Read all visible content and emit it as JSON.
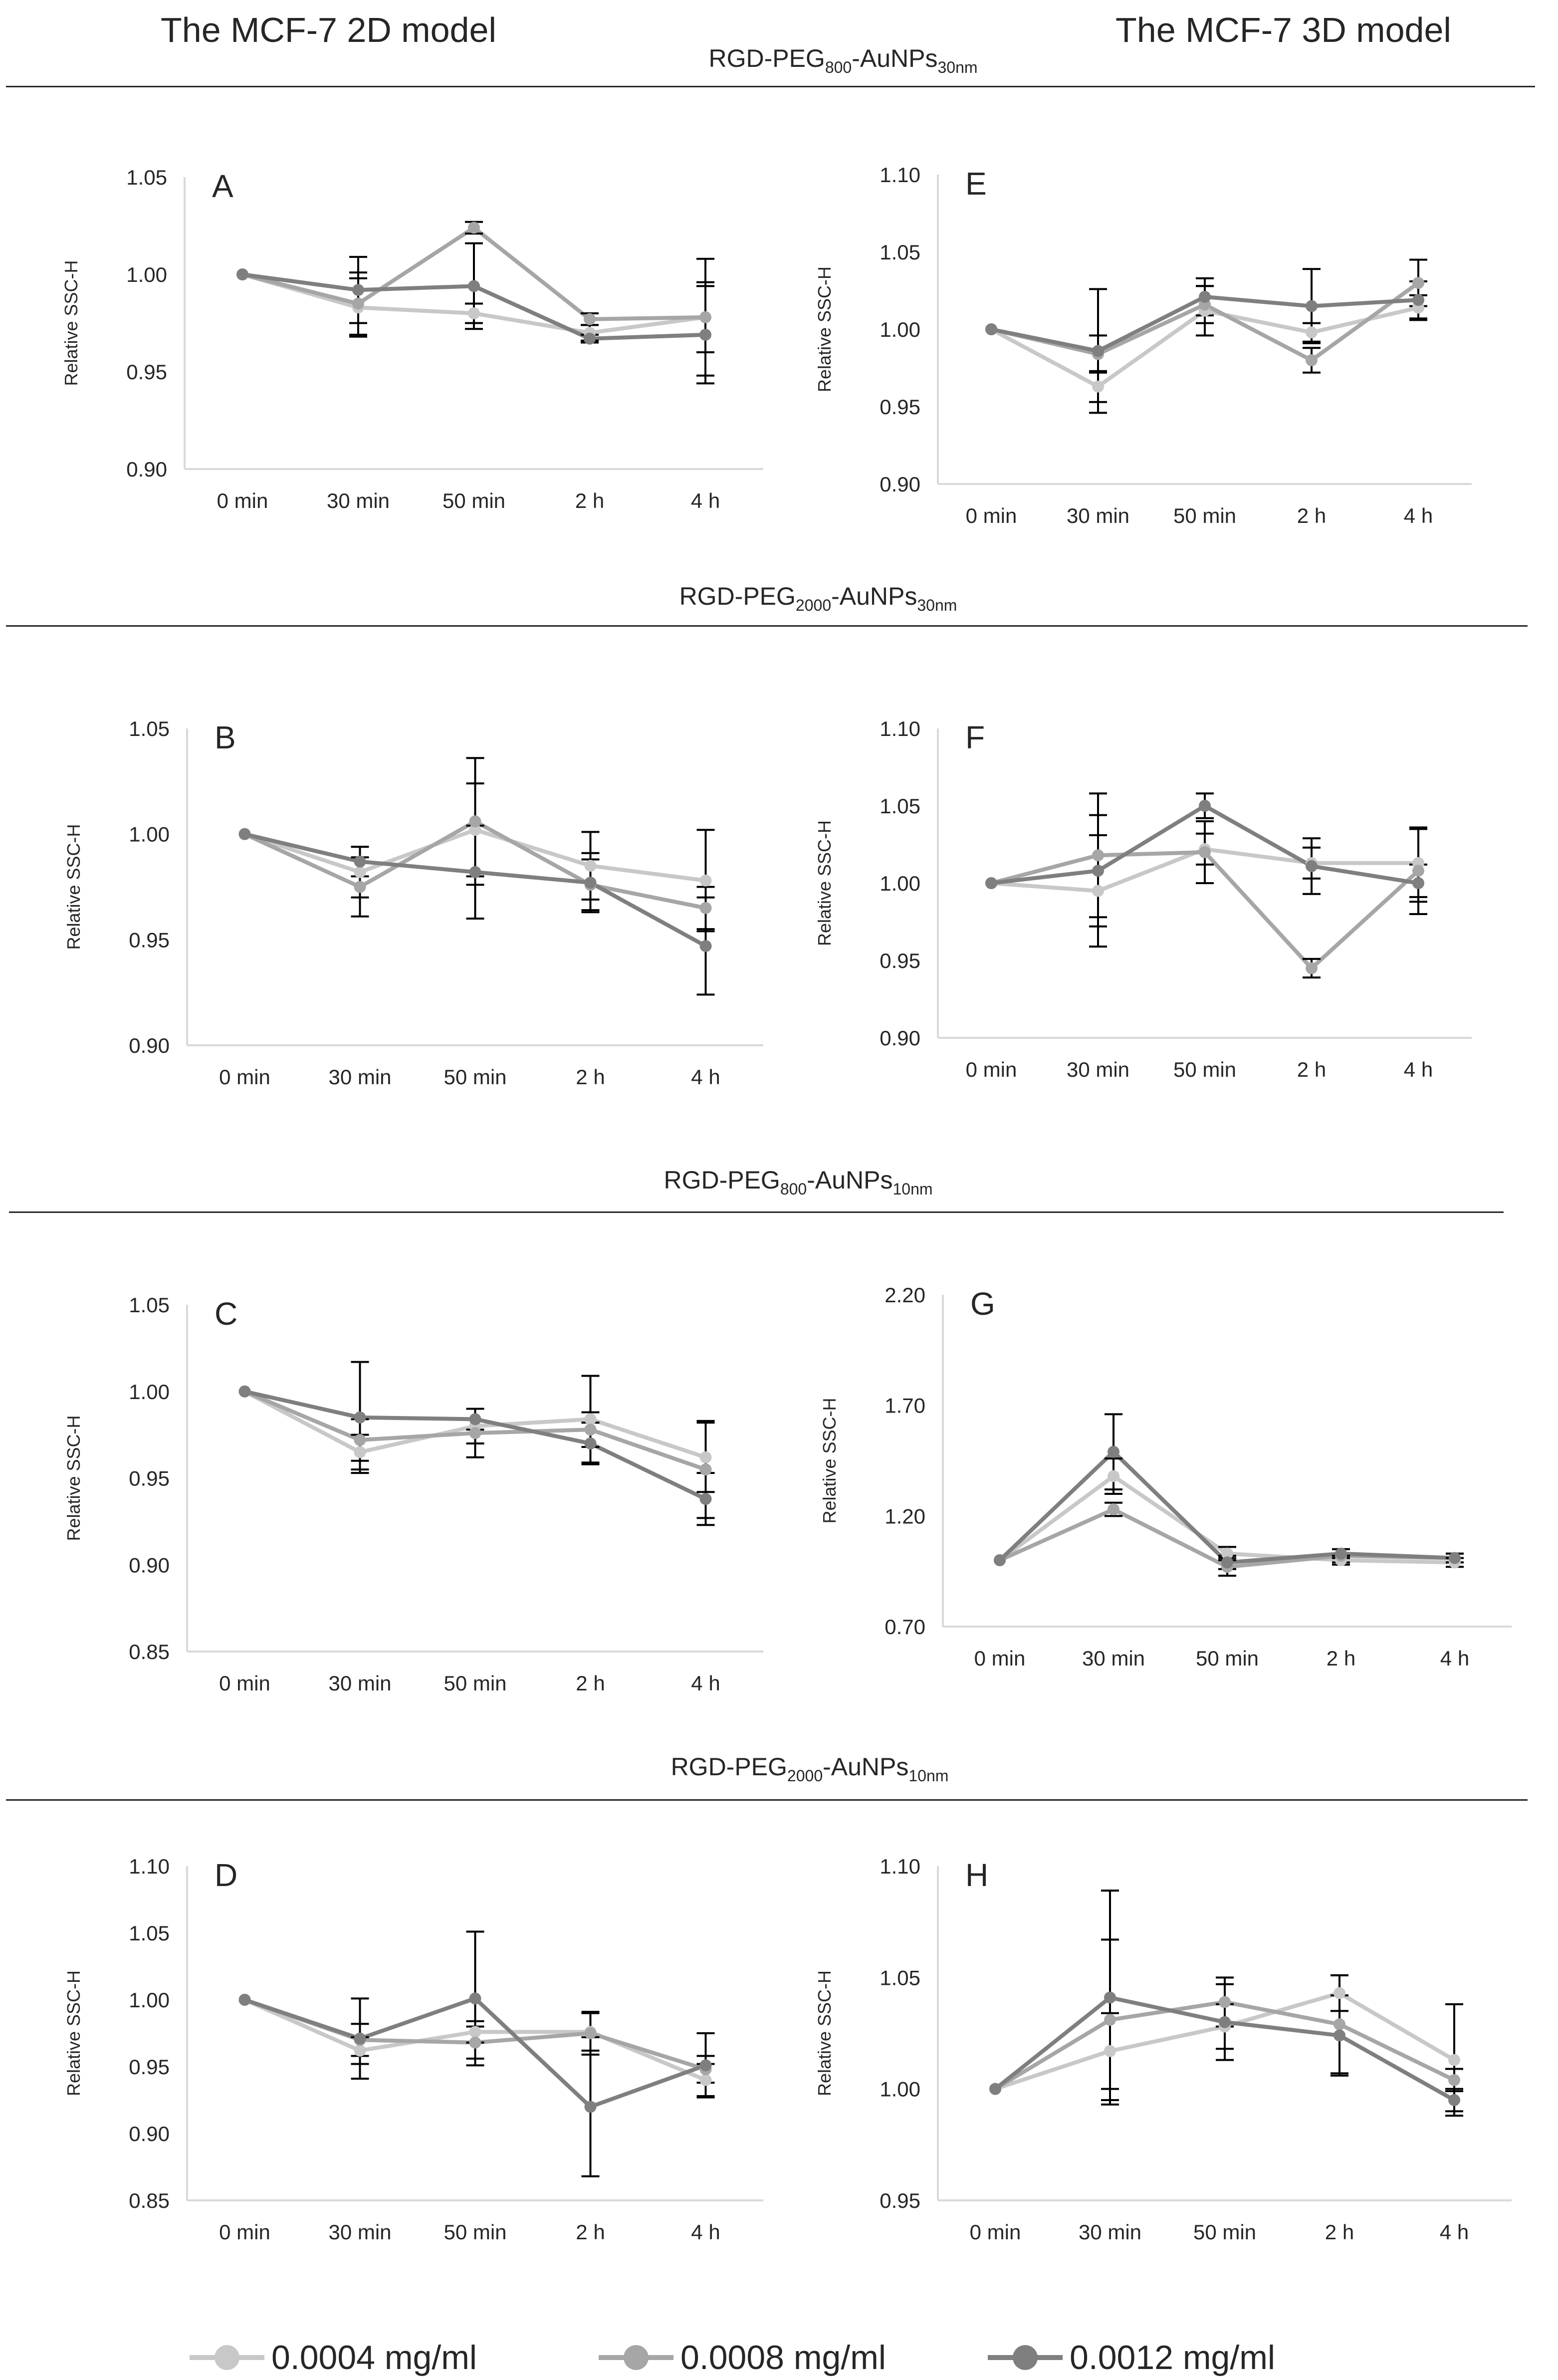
{
  "headers": {
    "left": "The MCF-7 2D model",
    "right": "The MCF-7 3D model"
  },
  "sections": [
    {
      "base": "RGD-PEG",
      "peg": "800",
      "mid": "-AuNPs",
      "size": "30nm"
    },
    {
      "base": "RGD-PEG",
      "peg": "2000",
      "mid": "-AuNPs",
      "size": "30nm"
    },
    {
      "base": "RGD-PEG",
      "peg": "800",
      "mid": "-AuNPs",
      "size": "10nm"
    },
    {
      "base": "RGD-PEG",
      "peg": "2000",
      "mid": "-AuNPs",
      "size": "10nm"
    }
  ],
  "colors": {
    "series": [
      "#c8c8c8",
      "#a6a6a6",
      "#7f7f7f"
    ],
    "axis": "#d9d9d9",
    "error": "#000000",
    "text": "#262626"
  },
  "legend": [
    {
      "label": "0.0004 mg/ml"
    },
    {
      "label": "0.0008 mg/ml"
    },
    {
      "label": "0.0012 mg/ml"
    }
  ],
  "chart_data": [
    {
      "id": "A",
      "type": "line",
      "panel_label": "A",
      "ylabel": "Relative SSC-H",
      "categories": [
        "0 min",
        "30 min",
        "50 min",
        "2 h",
        "4 h"
      ],
      "ylim": [
        0.9,
        1.05
      ],
      "yticks": [
        "0.90",
        "0.95",
        "1.00",
        "1.05"
      ],
      "series": [
        {
          "name": "0.0004 mg/ml",
          "values": [
            1.0,
            0.983,
            0.98,
            0.97,
            0.978
          ],
          "errors": [
            0,
            0.015,
            0.005,
            0.004,
            0.018
          ]
        },
        {
          "name": "0.0008 mg/ml",
          "values": [
            1.0,
            0.985,
            1.024,
            0.977,
            0.978
          ],
          "errors": [
            0,
            0.016,
            0.003,
            0.003,
            0.03
          ]
        },
        {
          "name": "0.0012 mg/ml",
          "values": [
            1.0,
            0.992,
            0.994,
            0.967,
            0.969
          ],
          "errors": [
            0,
            0.017,
            0.022,
            0.002,
            0.025
          ]
        }
      ]
    },
    {
      "id": "B",
      "type": "line",
      "panel_label": "B",
      "ylabel": "Relative SSC-H",
      "categories": [
        "0 min",
        "30 min",
        "50 min",
        "2 h",
        "4 h"
      ],
      "ylim": [
        0.9,
        1.05
      ],
      "yticks": [
        "0.90",
        "0.95",
        "1.00",
        "1.05"
      ],
      "series": [
        {
          "name": "0.0004 mg/ml",
          "values": [
            1.0,
            0.982,
            1.002,
            0.985,
            0.978
          ],
          "errors": [
            0,
            0.012,
            0.022,
            0.016,
            0.024
          ]
        },
        {
          "name": "0.0008 mg/ml",
          "values": [
            1.0,
            0.975,
            1.006,
            0.976,
            0.965
          ],
          "errors": [
            0,
            0.014,
            0.03,
            0.012,
            0.01
          ]
        },
        {
          "name": "0.0012 mg/ml",
          "values": [
            1.0,
            0.987,
            0.982,
            0.977,
            0.947
          ],
          "errors": [
            0,
            0.007,
            0.022,
            0.014,
            0.023
          ]
        }
      ]
    },
    {
      "id": "C",
      "type": "line",
      "panel_label": "C",
      "ylabel": "Relative SSC-H",
      "categories": [
        "0 min",
        "30 min",
        "50 min",
        "2 h",
        "4 h"
      ],
      "ylim": [
        0.85,
        1.05
      ],
      "yticks": [
        "0.85",
        "0.90",
        "0.95",
        "1.00",
        "1.05"
      ],
      "series": [
        {
          "name": "0.0004 mg/ml",
          "values": [
            1.0,
            0.965,
            0.98,
            0.984,
            0.962
          ],
          "errors": [
            0,
            0.01,
            0.01,
            0.025,
            0.02
          ]
        },
        {
          "name": "0.0008 mg/ml",
          "values": [
            1.0,
            0.972,
            0.976,
            0.978,
            0.955
          ],
          "errors": [
            0,
            0.012,
            0.014,
            0.01,
            0.028
          ]
        },
        {
          "name": "0.0012 mg/ml",
          "values": [
            1.0,
            0.985,
            0.984,
            0.97,
            0.938
          ],
          "errors": [
            0,
            0.032,
            0.006,
            0.012,
            0.015
          ]
        }
      ]
    },
    {
      "id": "D",
      "type": "line",
      "panel_label": "D",
      "ylabel": "Relative SSC-H",
      "categories": [
        "0 min",
        "30 min",
        "50 min",
        "2 h",
        "4 h"
      ],
      "ylim": [
        0.85,
        1.1
      ],
      "yticks": [
        "0.85",
        "0.90",
        "0.95",
        "1.00",
        "1.05",
        "1.10"
      ],
      "series": [
        {
          "name": "0.0004 mg/ml",
          "values": [
            1.0,
            0.962,
            0.976,
            0.976,
            0.94
          ],
          "errors": [
            0,
            0.01,
            0.008,
            0.014,
            0.012
          ]
        },
        {
          "name": "0.0008 mg/ml",
          "values": [
            1.0,
            0.97,
            0.968,
            0.975,
            0.948
          ],
          "errors": [
            0,
            0.012,
            0.012,
            0.016,
            0.01
          ]
        },
        {
          "name": "0.0012 mg/ml",
          "values": [
            1.0,
            0.971,
            1.001,
            0.92,
            0.951
          ],
          "errors": [
            0,
            0.03,
            0.05,
            0.052,
            0.024
          ]
        }
      ]
    },
    {
      "id": "E",
      "type": "line",
      "panel_label": "E",
      "ylabel": "Relative SSC-H",
      "categories": [
        "0 min",
        "30 min",
        "50 min",
        "2 h",
        "4 h"
      ],
      "ylim": [
        0.9,
        1.1
      ],
      "yticks": [
        "0.90",
        "0.95",
        "1.00",
        "1.05",
        "1.10"
      ],
      "series": [
        {
          "name": "0.0004 mg/ml",
          "values": [
            1.0,
            0.963,
            1.012,
            0.998,
            1.014
          ],
          "errors": [
            0,
            0.01,
            0.016,
            0.006,
            0.008
          ]
        },
        {
          "name": "0.0008 mg/ml",
          "values": [
            1.0,
            0.984,
            1.016,
            0.98,
            1.03
          ],
          "errors": [
            0,
            0.012,
            0.012,
            0.008,
            0.015
          ]
        },
        {
          "name": "0.0012 mg/ml",
          "values": [
            1.0,
            0.986,
            1.021,
            1.015,
            1.019
          ],
          "errors": [
            0,
            0.04,
            0.012,
            0.024,
            0.012
          ]
        }
      ]
    },
    {
      "id": "F",
      "type": "line",
      "panel_label": "F",
      "ylabel": "Relative SSC-H",
      "categories": [
        "0 min",
        "30 min",
        "50 min",
        "2 h",
        "4 h"
      ],
      "ylim": [
        0.9,
        1.1
      ],
      "yticks": [
        "0.90",
        "0.95",
        "1.00",
        "1.05",
        "1.10"
      ],
      "series": [
        {
          "name": "0.0004 mg/ml",
          "values": [
            1.0,
            0.995,
            1.022,
            1.013,
            1.013
          ],
          "errors": [
            0,
            0.036,
            0.01,
            0.01,
            0.022
          ]
        },
        {
          "name": "0.0008 mg/ml",
          "values": [
            1.0,
            1.018,
            1.02,
            0.945,
            1.008
          ],
          "errors": [
            0,
            0.04,
            0.02,
            0.006,
            0.028
          ]
        },
        {
          "name": "0.0012 mg/ml",
          "values": [
            1.0,
            1.008,
            1.05,
            1.011,
            1.0
          ],
          "errors": [
            0,
            0.036,
            0.008,
            0.018,
            0.012
          ]
        }
      ]
    },
    {
      "id": "G",
      "type": "line",
      "panel_label": "G",
      "ylabel": "Relative SSC-H",
      "categories": [
        "0 min",
        "30 min",
        "50 min",
        "2 h",
        "4 h"
      ],
      "ylim": [
        0.7,
        2.2
      ],
      "yticks": [
        "0.70",
        "1.20",
        "1.70",
        "2.20"
      ],
      "series": [
        {
          "name": "0.0004 mg/ml",
          "values": [
            1.0,
            1.38,
            1.03,
            1.0,
            0.99
          ],
          "errors": [
            0,
            0.08,
            0.03,
            0.02,
            0.02
          ]
        },
        {
          "name": "0.0008 mg/ml",
          "values": [
            1.0,
            1.23,
            0.97,
            1.02,
            1.01
          ],
          "errors": [
            0,
            0.03,
            0.04,
            0.03,
            0.02
          ]
        },
        {
          "name": "0.0012 mg/ml",
          "values": [
            1.0,
            1.49,
            0.99,
            1.03,
            1.01
          ],
          "errors": [
            0,
            0.17,
            0.03,
            0.02,
            0.02
          ]
        }
      ]
    },
    {
      "id": "H",
      "type": "line",
      "panel_label": "H",
      "ylabel": "Relative SSC-H",
      "categories": [
        "0 min",
        "30 min",
        "50 min",
        "2 h",
        "4 h"
      ],
      "ylim": [
        0.95,
        1.1
      ],
      "yticks": [
        "0.95",
        "1.00",
        "1.05",
        "1.10"
      ],
      "series": [
        {
          "name": "0.0004 mg/ml",
          "values": [
            1.0,
            1.017,
            1.028,
            1.043,
            1.013
          ],
          "errors": [
            0,
            0.017,
            0.01,
            0.008,
            0.025
          ]
        },
        {
          "name": "0.0008 mg/ml",
          "values": [
            1.0,
            1.031,
            1.039,
            1.029,
            1.004
          ],
          "errors": [
            0,
            0.036,
            0.011,
            0.022,
            0.005
          ]
        },
        {
          "name": "0.0012 mg/ml",
          "values": [
            1.0,
            1.041,
            1.03,
            1.024,
            0.995
          ],
          "errors": [
            0,
            0.048,
            0.017,
            0.018,
            0.005
          ]
        }
      ]
    }
  ]
}
